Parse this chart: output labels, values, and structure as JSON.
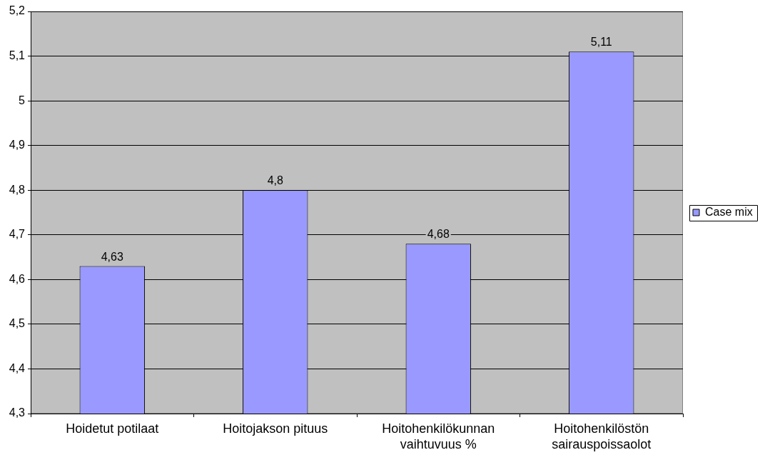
{
  "chart_data": {
    "type": "bar",
    "categories": [
      "Hoidetut potilaat",
      "Hoitojakson pituus",
      "Hoitohenkilökunnan\nvaihtuvuus %",
      "Hoitohenkilöstön\nsairauspoissaolot"
    ],
    "series": [
      {
        "name": "Case mix",
        "color": "#9999ff",
        "values": [
          4.63,
          4.8,
          4.68,
          5.11
        ],
        "value_labels": [
          "4,63",
          "4,8",
          "4,68",
          "5,11"
        ]
      }
    ],
    "ylim": [
      4.3,
      5.2
    ],
    "yticks": [
      {
        "value": 4.3,
        "label": "4,3"
      },
      {
        "value": 4.4,
        "label": "4,4"
      },
      {
        "value": 4.5,
        "label": "4,5"
      },
      {
        "value": 4.6,
        "label": "4,6"
      },
      {
        "value": 4.7,
        "label": "4,7"
      },
      {
        "value": 4.8,
        "label": "4,8"
      },
      {
        "value": 4.9,
        "label": "4,9"
      },
      {
        "value": 5,
        "label": "5"
      },
      {
        "value": 5.1,
        "label": "5,1"
      },
      {
        "value": 5.2,
        "label": "5,2"
      }
    ],
    "grid": "y",
    "legend": "right"
  }
}
